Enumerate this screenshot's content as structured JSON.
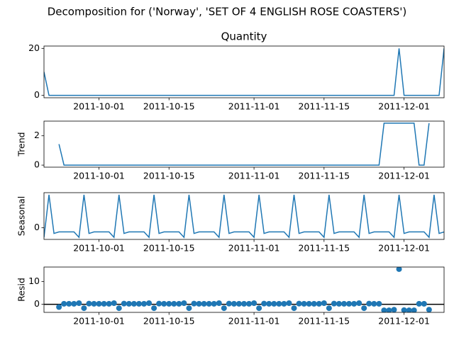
{
  "title": "Decomposition for ('Norway', 'SET OF 4 ENGLISH ROSE COASTERS')",
  "chart_data": [
    {
      "type": "line",
      "title": "Quantity",
      "color": "#1f77b4",
      "x": [
        "2011-09-20",
        "2011-09-21",
        "2011-09-22",
        "2011-09-23",
        "2011-09-24",
        "2011-09-25",
        "2011-09-26",
        "2011-09-27",
        "2011-09-28",
        "2011-09-29",
        "2011-09-30",
        "2011-10-01",
        "2011-10-02",
        "2011-10-03",
        "2011-10-04",
        "2011-10-05",
        "2011-10-06",
        "2011-10-07",
        "2011-10-08",
        "2011-10-09",
        "2011-10-10",
        "2011-10-11",
        "2011-10-12",
        "2011-10-13",
        "2011-10-14",
        "2011-10-15",
        "2011-10-16",
        "2011-10-17",
        "2011-10-18",
        "2011-10-19",
        "2011-10-20",
        "2011-10-21",
        "2011-10-22",
        "2011-10-23",
        "2011-10-24",
        "2011-10-25",
        "2011-10-26",
        "2011-10-27",
        "2011-10-28",
        "2011-10-29",
        "2011-10-30",
        "2011-10-31",
        "2011-11-01",
        "2011-11-02",
        "2011-11-03",
        "2011-11-04",
        "2011-11-05",
        "2011-11-06",
        "2011-11-07",
        "2011-11-08",
        "2011-11-09",
        "2011-11-10",
        "2011-11-11",
        "2011-11-12",
        "2011-11-13",
        "2011-11-14",
        "2011-11-15",
        "2011-11-16",
        "2011-11-17",
        "2011-11-18",
        "2011-11-19",
        "2011-11-20",
        "2011-11-21",
        "2011-11-22",
        "2011-11-23",
        "2011-11-24",
        "2011-11-25",
        "2011-11-26",
        "2011-11-27",
        "2011-11-28",
        "2011-11-29",
        "2011-11-30",
        "2011-12-01",
        "2011-12-02",
        "2011-12-03",
        "2011-12-04",
        "2011-12-05",
        "2011-12-06",
        "2011-12-07",
        "2011-12-08",
        "2011-12-09"
      ],
      "values": [
        10,
        0,
        0,
        0,
        0,
        0,
        0,
        0,
        0,
        0,
        0,
        0,
        0,
        0,
        0,
        0,
        0,
        0,
        0,
        0,
        0,
        0,
        0,
        0,
        0,
        0,
        0,
        0,
        0,
        0,
        0,
        0,
        0,
        0,
        0,
        0,
        0,
        0,
        0,
        0,
        0,
        0,
        0,
        0,
        0,
        0,
        0,
        0,
        0,
        0,
        0,
        0,
        0,
        0,
        0,
        0,
        0,
        0,
        0,
        0,
        0,
        0,
        0,
        0,
        0,
        0,
        0,
        0,
        0,
        0,
        0,
        20,
        0,
        0,
        0,
        0,
        0,
        0,
        0,
        0,
        20
      ],
      "xlim": [
        "2011-09-20",
        "2011-12-09"
      ],
      "xticks": [
        "2011-10-01",
        "2011-10-15",
        "2011-11-01",
        "2011-11-15",
        "2011-12-01"
      ],
      "ylim": [
        -1,
        21
      ],
      "yticks": [
        0,
        20
      ]
    },
    {
      "type": "line",
      "ylabel": "Trend",
      "color": "#1f77b4",
      "x": [
        "2011-09-20",
        "2011-09-21",
        "2011-09-22",
        "2011-09-23",
        "2011-09-24",
        "2011-09-25",
        "2011-09-26",
        "2011-09-27",
        "2011-09-28",
        "2011-09-29",
        "2011-09-30",
        "2011-10-01",
        "2011-10-02",
        "2011-10-03",
        "2011-10-04",
        "2011-10-05",
        "2011-10-06",
        "2011-10-07",
        "2011-10-08",
        "2011-10-09",
        "2011-10-10",
        "2011-10-11",
        "2011-10-12",
        "2011-10-13",
        "2011-10-14",
        "2011-10-15",
        "2011-10-16",
        "2011-10-17",
        "2011-10-18",
        "2011-10-19",
        "2011-10-20",
        "2011-10-21",
        "2011-10-22",
        "2011-10-23",
        "2011-10-24",
        "2011-10-25",
        "2011-10-26",
        "2011-10-27",
        "2011-10-28",
        "2011-10-29",
        "2011-10-30",
        "2011-10-31",
        "2011-11-01",
        "2011-11-02",
        "2011-11-03",
        "2011-11-04",
        "2011-11-05",
        "2011-11-06",
        "2011-11-07",
        "2011-11-08",
        "2011-11-09",
        "2011-11-10",
        "2011-11-11",
        "2011-11-12",
        "2011-11-13",
        "2011-11-14",
        "2011-11-15",
        "2011-11-16",
        "2011-11-17",
        "2011-11-18",
        "2011-11-19",
        "2011-11-20",
        "2011-11-21",
        "2011-11-22",
        "2011-11-23",
        "2011-11-24",
        "2011-11-25",
        "2011-11-26",
        "2011-11-27",
        "2011-11-28",
        "2011-11-29",
        "2011-11-30",
        "2011-12-01",
        "2011-12-02",
        "2011-12-03",
        "2011-12-04",
        "2011-12-05",
        "2011-12-06",
        "2011-12-07",
        "2011-12-08",
        "2011-12-09"
      ],
      "values": [
        null,
        null,
        null,
        1.43,
        0,
        0,
        0,
        0,
        0,
        0,
        0,
        0,
        0,
        0,
        0,
        0,
        0,
        0,
        0,
        0,
        0,
        0,
        0,
        0,
        0,
        0,
        0,
        0,
        0,
        0,
        0,
        0,
        0,
        0,
        0,
        0,
        0,
        0,
        0,
        0,
        0,
        0,
        0,
        0,
        0,
        0,
        0,
        0,
        0,
        0,
        0,
        0,
        0,
        0,
        0,
        0,
        0,
        0,
        0,
        0,
        0,
        0,
        0,
        0,
        0,
        0,
        0,
        0,
        2.86,
        2.86,
        2.86,
        2.86,
        2.86,
        2.86,
        2.86,
        0,
        0,
        2.86,
        null,
        null,
        null
      ],
      "xlim": [
        "2011-09-20",
        "2011-12-09"
      ],
      "xticks": [
        "2011-10-01",
        "2011-10-15",
        "2011-11-01",
        "2011-11-15",
        "2011-12-01"
      ],
      "ylim": [
        -0.14,
        3.0
      ],
      "yticks": [
        0,
        2
      ]
    },
    {
      "type": "line",
      "ylabel": "Seasonal",
      "color": "#1f77b4",
      "x": [
        "2011-09-20",
        "2011-09-21",
        "2011-09-22",
        "2011-09-23",
        "2011-09-24",
        "2011-09-25",
        "2011-09-26",
        "2011-09-27",
        "2011-09-28",
        "2011-09-29",
        "2011-09-30",
        "2011-10-01",
        "2011-10-02",
        "2011-10-03",
        "2011-10-04",
        "2011-10-05",
        "2011-10-06",
        "2011-10-07",
        "2011-10-08",
        "2011-10-09",
        "2011-10-10",
        "2011-10-11",
        "2011-10-12",
        "2011-10-13",
        "2011-10-14",
        "2011-10-15",
        "2011-10-16",
        "2011-10-17",
        "2011-10-18",
        "2011-10-19",
        "2011-10-20",
        "2011-10-21",
        "2011-10-22",
        "2011-10-23",
        "2011-10-24",
        "2011-10-25",
        "2011-10-26",
        "2011-10-27",
        "2011-10-28",
        "2011-10-29",
        "2011-10-30",
        "2011-10-31",
        "2011-11-01",
        "2011-11-02",
        "2011-11-03",
        "2011-11-04",
        "2011-11-05",
        "2011-11-06",
        "2011-11-07",
        "2011-11-08",
        "2011-11-09",
        "2011-11-10",
        "2011-11-11",
        "2011-11-12",
        "2011-11-13",
        "2011-11-14",
        "2011-11-15",
        "2011-11-16",
        "2011-11-17",
        "2011-11-18",
        "2011-11-19",
        "2011-11-20",
        "2011-11-21",
        "2011-11-22",
        "2011-11-23",
        "2011-11-24",
        "2011-11-25",
        "2011-11-26",
        "2011-11-27",
        "2011-11-28",
        "2011-11-29",
        "2011-11-30",
        "2011-12-01",
        "2011-12-02",
        "2011-12-03",
        "2011-12-04",
        "2011-12-05",
        "2011-12-06",
        "2011-12-07",
        "2011-12-08",
        "2011-12-09"
      ],
      "values": [
        -0.5,
        1.71,
        -0.3,
        -0.22,
        -0.22,
        -0.22,
        -0.22,
        -0.5,
        1.71,
        -0.3,
        -0.22,
        -0.22,
        -0.22,
        -0.22,
        -0.5,
        1.71,
        -0.3,
        -0.22,
        -0.22,
        -0.22,
        -0.22,
        -0.5,
        1.71,
        -0.3,
        -0.22,
        -0.22,
        -0.22,
        -0.22,
        -0.5,
        1.71,
        -0.3,
        -0.22,
        -0.22,
        -0.22,
        -0.22,
        -0.5,
        1.71,
        -0.3,
        -0.22,
        -0.22,
        -0.22,
        -0.22,
        -0.5,
        1.71,
        -0.3,
        -0.22,
        -0.22,
        -0.22,
        -0.22,
        -0.5,
        1.71,
        -0.3,
        -0.22,
        -0.22,
        -0.22,
        -0.22,
        -0.5,
        1.71,
        -0.3,
        -0.22,
        -0.22,
        -0.22,
        -0.22,
        -0.5,
        1.71,
        -0.3,
        -0.22,
        -0.22,
        -0.22,
        -0.22,
        -0.5,
        1.71,
        -0.3,
        -0.22,
        -0.22,
        -0.22,
        -0.22,
        -0.5,
        1.71,
        -0.3,
        -0.22
      ],
      "xlim": [
        "2011-09-20",
        "2011-12-09"
      ],
      "xticks": [
        "2011-10-01",
        "2011-10-15",
        "2011-11-01",
        "2011-11-15",
        "2011-12-01"
      ],
      "ylim": [
        -0.61,
        1.82
      ],
      "yticks": [
        0
      ]
    },
    {
      "type": "scatter",
      "ylabel": "Resid",
      "color": "#1f77b4",
      "hline": 0,
      "x": [
        "2011-09-20",
        "2011-09-21",
        "2011-09-22",
        "2011-09-23",
        "2011-09-24",
        "2011-09-25",
        "2011-09-26",
        "2011-09-27",
        "2011-09-28",
        "2011-09-29",
        "2011-09-30",
        "2011-10-01",
        "2011-10-02",
        "2011-10-03",
        "2011-10-04",
        "2011-10-05",
        "2011-10-06",
        "2011-10-07",
        "2011-10-08",
        "2011-10-09",
        "2011-10-10",
        "2011-10-11",
        "2011-10-12",
        "2011-10-13",
        "2011-10-14",
        "2011-10-15",
        "2011-10-16",
        "2011-10-17",
        "2011-10-18",
        "2011-10-19",
        "2011-10-20",
        "2011-10-21",
        "2011-10-22",
        "2011-10-23",
        "2011-10-24",
        "2011-10-25",
        "2011-10-26",
        "2011-10-27",
        "2011-10-28",
        "2011-10-29",
        "2011-10-30",
        "2011-10-31",
        "2011-11-01",
        "2011-11-02",
        "2011-11-03",
        "2011-11-04",
        "2011-11-05",
        "2011-11-06",
        "2011-11-07",
        "2011-11-08",
        "2011-11-09",
        "2011-11-10",
        "2011-11-11",
        "2011-11-12",
        "2011-11-13",
        "2011-11-14",
        "2011-11-15",
        "2011-11-16",
        "2011-11-17",
        "2011-11-18",
        "2011-11-19",
        "2011-11-20",
        "2011-11-21",
        "2011-11-22",
        "2011-11-23",
        "2011-11-24",
        "2011-11-25",
        "2011-11-26",
        "2011-11-27",
        "2011-11-28",
        "2011-11-29",
        "2011-11-30",
        "2011-12-01",
        "2011-12-02",
        "2011-12-03",
        "2011-12-04",
        "2011-12-05",
        "2011-12-06",
        "2011-12-07",
        "2011-12-08",
        "2011-12-09"
      ],
      "values": [
        null,
        null,
        null,
        -1.21,
        0.22,
        0.22,
        0.22,
        0.5,
        -1.71,
        0.3,
        0.22,
        0.22,
        0.22,
        0.22,
        0.5,
        -1.71,
        0.3,
        0.22,
        0.22,
        0.22,
        0.22,
        0.5,
        -1.71,
        0.3,
        0.22,
        0.22,
        0.22,
        0.22,
        0.5,
        -1.71,
        0.3,
        0.22,
        0.22,
        0.22,
        0.22,
        0.5,
        -1.71,
        0.3,
        0.22,
        0.22,
        0.22,
        0.22,
        0.5,
        -1.71,
        0.3,
        0.22,
        0.22,
        0.22,
        0.22,
        0.5,
        -1.71,
        0.3,
        0.22,
        0.22,
        0.22,
        0.22,
        0.5,
        -1.71,
        0.3,
        0.22,
        0.22,
        0.22,
        0.22,
        0.5,
        -1.71,
        0.3,
        0.22,
        0.22,
        -2.64,
        -2.64,
        -2.36,
        15.43,
        -2.56,
        -2.64,
        -2.64,
        0.22,
        0.22,
        -2.36,
        null,
        null,
        null
      ],
      "xlim": [
        "2011-09-20",
        "2011-12-09"
      ],
      "xticks": [
        "2011-10-01",
        "2011-10-15",
        "2011-11-01",
        "2011-11-15",
        "2011-12-01"
      ],
      "ylim": [
        -3.54,
        16.33
      ],
      "yticks": [
        0,
        10
      ]
    }
  ]
}
